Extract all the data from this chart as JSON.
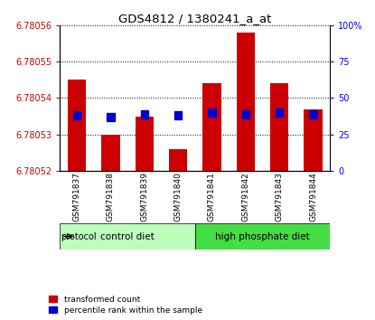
{
  "title": "GDS4812 / 1380241_a_at",
  "samples": [
    "GSM791837",
    "GSM791838",
    "GSM791839",
    "GSM791840",
    "GSM791841",
    "GSM791842",
    "GSM791843",
    "GSM791844"
  ],
  "transformed_counts": [
    6.780545,
    6.78053,
    6.780535,
    6.780526,
    6.780544,
    6.780558,
    6.780544,
    6.780537
  ],
  "percentile_ranks": [
    38,
    37,
    39,
    38,
    40,
    39,
    40,
    39
  ],
  "y_min": 6.78052,
  "y_max": 6.78056,
  "y_ticks_left": [
    6.78052,
    6.78053,
    6.78054,
    6.78055,
    6.78056
  ],
  "y_ticks_right": [
    0,
    25,
    50,
    75,
    100
  ],
  "bar_color": "#cc0000",
  "blue_color": "#0000cc",
  "protocol_groups": [
    {
      "label": "control diet",
      "start": 0,
      "end": 3,
      "color": "#bbffbb"
    },
    {
      "label": "high phosphate diet",
      "start": 4,
      "end": 7,
      "color": "#44dd44"
    }
  ],
  "bar_width": 0.55,
  "tick_label_bg": "#cccccc",
  "legend_red_label": "transformed count",
  "legend_blue_label": "percentile rank within the sample"
}
